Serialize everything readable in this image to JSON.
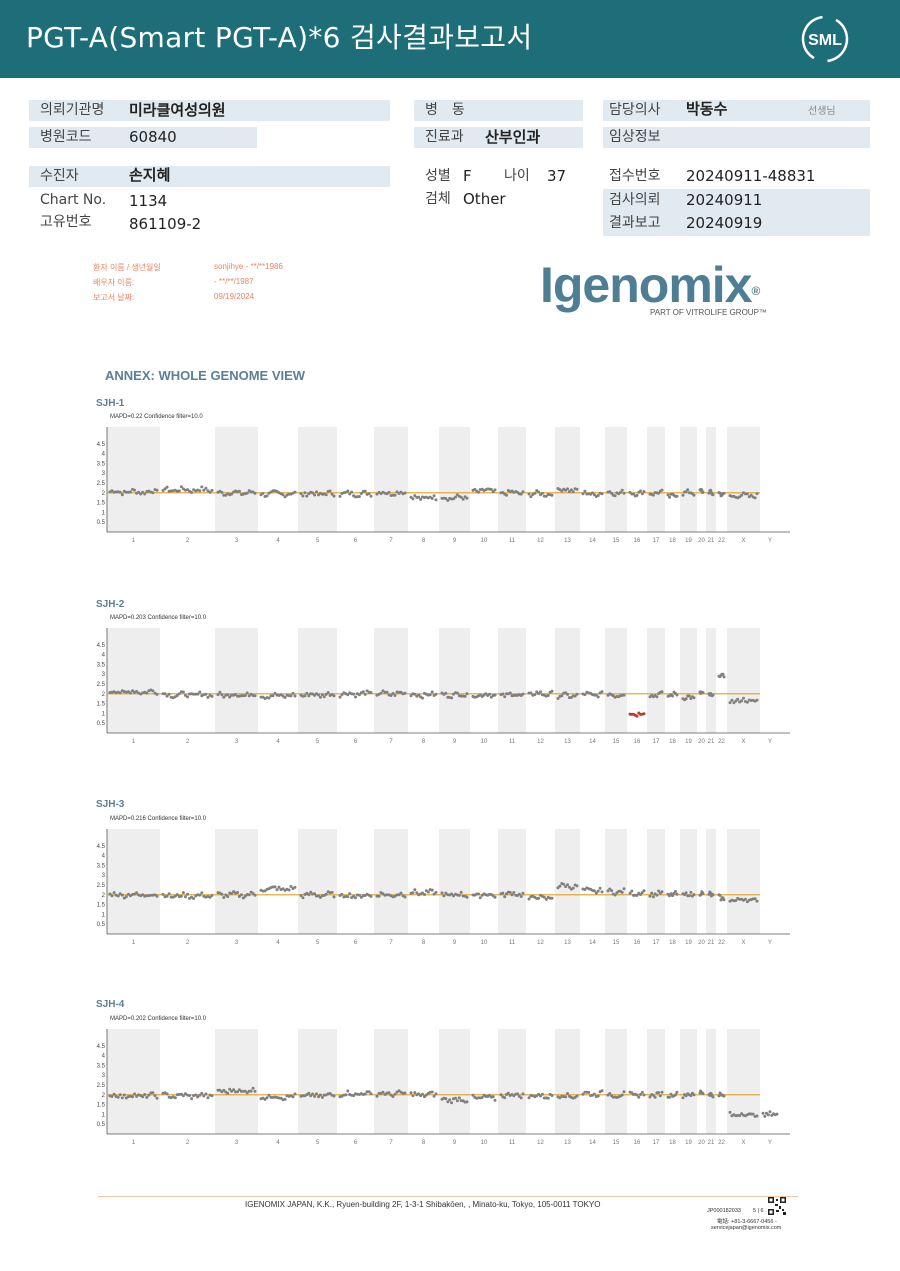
{
  "header": {
    "title": "PGT-A(Smart  PGT-A)*6 검사결과보고서",
    "logo_text": "SML"
  },
  "info": {
    "institution_label": "의뢰기관명",
    "institution": "미라클여성의원",
    "hospital_code_label": "병원코드",
    "hospital_code": "60840",
    "ward_label": "병　동",
    "ward": "",
    "department_label": "진료과",
    "department": "산부인과",
    "doctor_label": "담당의사",
    "doctor": "박동수",
    "doctor_suffix": "선생님",
    "clinical_label": "임상정보",
    "clinical": "",
    "patient_label": "수진자",
    "patient": "손지혜",
    "chart_label": "Chart No.",
    "chart_no": "1134",
    "unique_label": "고유번호",
    "unique_no": "861109-2",
    "sex_label": "성별",
    "sex": "F",
    "age_label": "나이",
    "age": "37",
    "specimen_label": "검체",
    "specimen": "Other",
    "receipt_label": "접수번호",
    "receipt_no": "20240911-48831",
    "request_label": "검사의뢰",
    "request_date": "20240911",
    "report_label": "결과보고",
    "report_date": "20240919"
  },
  "report_meta": {
    "patient_name_label": "환자 이름 / 생년월일",
    "patient_name_value": "sonjihye - **/**1986",
    "spouse_label": "배우자 이름:",
    "spouse_value": "- **/**/1987",
    "report_date_label": "보고서 날짜:",
    "report_date_value": "09/19/2024"
  },
  "brand": {
    "name": "Igenomix",
    "subline": "PART OF VITROLIFE GROUP™"
  },
  "annex_title": "ANNEX: WHOLE GENOME VIEW",
  "chart_data": [
    {
      "type": "scatter",
      "title": "SJH-1",
      "subtitle": "MAPD=0.22 Confidence filter=10.0",
      "x_categories": [
        "1",
        "2",
        "3",
        "4",
        "5",
        "6",
        "7",
        "8",
        "9",
        "10",
        "11",
        "12",
        "13",
        "14",
        "15",
        "16",
        "17",
        "18",
        "19",
        "20",
        "21",
        "22",
        "X",
        "Y"
      ],
      "yticks": [
        "4.5",
        "4",
        "3.5",
        "3",
        "2.5",
        "2",
        "1.5",
        "1",
        "0.5"
      ],
      "ylim": [
        0,
        5
      ],
      "baseline": 2,
      "segments": [
        {
          "chr": "1",
          "y": 2.05
        },
        {
          "chr": "2",
          "y": 2.15
        },
        {
          "chr": "3",
          "y": 2.0
        },
        {
          "chr": "4",
          "y": 1.95
        },
        {
          "chr": "5",
          "y": 1.95
        },
        {
          "chr": "6",
          "y": 1.95
        },
        {
          "chr": "7",
          "y": 2.0
        },
        {
          "chr": "8",
          "y": 1.75
        },
        {
          "chr": "9",
          "y": 1.75
        },
        {
          "chr": "10",
          "y": 2.1
        },
        {
          "chr": "11",
          "y": 2.0
        },
        {
          "chr": "12",
          "y": 1.95
        },
        {
          "chr": "13",
          "y": 2.15
        },
        {
          "chr": "14",
          "y": 1.95
        },
        {
          "chr": "15",
          "y": 2.0
        },
        {
          "chr": "16",
          "y": 2.0
        },
        {
          "chr": "17",
          "y": 2.0
        },
        {
          "chr": "18",
          "y": 1.85
        },
        {
          "chr": "19",
          "y": 2.0
        },
        {
          "chr": "20",
          "y": 2.05
        },
        {
          "chr": "21",
          "y": 2.0
        },
        {
          "chr": "22",
          "y": 1.95
        },
        {
          "chr": "X",
          "y": 1.85
        },
        {
          "chr": "Y",
          "y": null
        }
      ]
    },
    {
      "type": "scatter",
      "title": "SJH-2",
      "subtitle": "MAPD=0.203 Confidence filter=10.0",
      "x_categories": [
        "1",
        "2",
        "3",
        "4",
        "5",
        "6",
        "7",
        "8",
        "9",
        "10",
        "11",
        "12",
        "13",
        "14",
        "15",
        "16",
        "17",
        "18",
        "19",
        "20",
        "21",
        "22",
        "X",
        "Y"
      ],
      "yticks": [
        "4.5",
        "4",
        "3.5",
        "3",
        "2.5",
        "2",
        "1.5",
        "1",
        "0.5"
      ],
      "ylim": [
        0,
        5
      ],
      "baseline": 2,
      "segments": [
        {
          "chr": "1",
          "y": 2.1
        },
        {
          "chr": "2",
          "y": 1.95
        },
        {
          "chr": "3",
          "y": 1.95
        },
        {
          "chr": "4",
          "y": 1.9
        },
        {
          "chr": "5",
          "y": 1.95
        },
        {
          "chr": "6",
          "y": 2.0
        },
        {
          "chr": "7",
          "y": 2.0
        },
        {
          "chr": "8",
          "y": 1.95
        },
        {
          "chr": "9",
          "y": 1.95
        },
        {
          "chr": "10",
          "y": 1.95
        },
        {
          "chr": "11",
          "y": 1.95
        },
        {
          "chr": "12",
          "y": 2.0
        },
        {
          "chr": "13",
          "y": 1.9
        },
        {
          "chr": "14",
          "y": 1.95
        },
        {
          "chr": "15",
          "y": 1.95
        },
        {
          "chr": "16",
          "y": 1.0,
          "flag": "loss"
        },
        {
          "chr": "17",
          "y": 1.95
        },
        {
          "chr": "18",
          "y": 1.95
        },
        {
          "chr": "19",
          "y": 1.8
        },
        {
          "chr": "20",
          "y": 2.0
        },
        {
          "chr": "21",
          "y": 1.9
        },
        {
          "chr": "22",
          "y": 2.95
        },
        {
          "chr": "X",
          "y": 1.65
        },
        {
          "chr": "Y",
          "y": null
        }
      ]
    },
    {
      "type": "scatter",
      "title": "SJH-3",
      "subtitle": "MAPD=0.216 Confidence filter=10.0",
      "x_categories": [
        "1",
        "2",
        "3",
        "4",
        "5",
        "6",
        "7",
        "8",
        "9",
        "10",
        "11",
        "12",
        "13",
        "14",
        "15",
        "16",
        "17",
        "18",
        "19",
        "20",
        "21",
        "22",
        "X",
        "Y"
      ],
      "yticks": [
        "4.5",
        "4",
        "3.5",
        "3",
        "2.5",
        "2",
        "1.5",
        "1",
        "0.5"
      ],
      "ylim": [
        0,
        5
      ],
      "baseline": 2,
      "segments": [
        {
          "chr": "1",
          "y": 2.0
        },
        {
          "chr": "2",
          "y": 1.95
        },
        {
          "chr": "3",
          "y": 2.0
        },
        {
          "chr": "4",
          "y": 2.3
        },
        {
          "chr": "5",
          "y": 2.0
        },
        {
          "chr": "6",
          "y": 1.95
        },
        {
          "chr": "7",
          "y": 2.0
        },
        {
          "chr": "8",
          "y": 2.1
        },
        {
          "chr": "9",
          "y": 2.0
        },
        {
          "chr": "10",
          "y": 2.0
        },
        {
          "chr": "11",
          "y": 2.05
        },
        {
          "chr": "12",
          "y": 1.85
        },
        {
          "chr": "13",
          "y": 2.45
        },
        {
          "chr": "14",
          "y": 2.2
        },
        {
          "chr": "15",
          "y": 2.15
        },
        {
          "chr": "16",
          "y": 2.1
        },
        {
          "chr": "17",
          "y": 2.05
        },
        {
          "chr": "18",
          "y": 2.0
        },
        {
          "chr": "19",
          "y": 2.0
        },
        {
          "chr": "20",
          "y": 2.05
        },
        {
          "chr": "21",
          "y": 2.0
        },
        {
          "chr": "22",
          "y": 1.85
        },
        {
          "chr": "X",
          "y": 1.75
        },
        {
          "chr": "Y",
          "y": null
        }
      ]
    },
    {
      "type": "scatter",
      "title": "SJH-4",
      "subtitle": "MAPD=0.202 Confidence filter=10.0",
      "x_categories": [
        "1",
        "2",
        "3",
        "4",
        "5",
        "6",
        "7",
        "8",
        "9",
        "10",
        "11",
        "12",
        "13",
        "14",
        "15",
        "16",
        "17",
        "18",
        "19",
        "20",
        "21",
        "22",
        "X",
        "Y"
      ],
      "yticks": [
        "4.5",
        "4",
        "3.5",
        "3",
        "2.5",
        "2",
        "1.5",
        "1",
        "0.5"
      ],
      "ylim": [
        0,
        5
      ],
      "baseline": 2,
      "segments": [
        {
          "chr": "1",
          "y": 1.95
        },
        {
          "chr": "2",
          "y": 1.95
        },
        {
          "chr": "3",
          "y": 2.2
        },
        {
          "chr": "4",
          "y": 1.9
        },
        {
          "chr": "5",
          "y": 1.95
        },
        {
          "chr": "6",
          "y": 2.05
        },
        {
          "chr": "7",
          "y": 2.05
        },
        {
          "chr": "8",
          "y": 2.0
        },
        {
          "chr": "9",
          "y": 1.75
        },
        {
          "chr": "10",
          "y": 1.85
        },
        {
          "chr": "11",
          "y": 2.0
        },
        {
          "chr": "12",
          "y": 1.95
        },
        {
          "chr": "13",
          "y": 1.95
        },
        {
          "chr": "14",
          "y": 2.05
        },
        {
          "chr": "15",
          "y": 2.0
        },
        {
          "chr": "16",
          "y": 2.0
        },
        {
          "chr": "17",
          "y": 2.0
        },
        {
          "chr": "18",
          "y": 2.0
        },
        {
          "chr": "19",
          "y": 2.0
        },
        {
          "chr": "20",
          "y": 2.1
        },
        {
          "chr": "21",
          "y": 2.0
        },
        {
          "chr": "22",
          "y": 2.0
        },
        {
          "chr": "X",
          "y": 1.0
        },
        {
          "chr": "Y",
          "y": 1.0
        }
      ]
    }
  ],
  "colors": {
    "header_bg": "#1d6e78",
    "row_bg": "#e1eaf0",
    "baseline": "#e0a020",
    "points": "#808080",
    "loss": "#c0392b",
    "band": "#eeeeee"
  },
  "footer": {
    "address": "IGENOMIX JAPAN, K.K., Ryuen-building 2F, 1-3-1 Shibakōen, , Minato-ku, Tokyo, 105-0011 TOKYO",
    "doc_id": "JP000182033",
    "page": "5 | 6",
    "phone": "電話: +81-3-6667-0456 -",
    "email": "servicejapan@igenomix.com"
  }
}
